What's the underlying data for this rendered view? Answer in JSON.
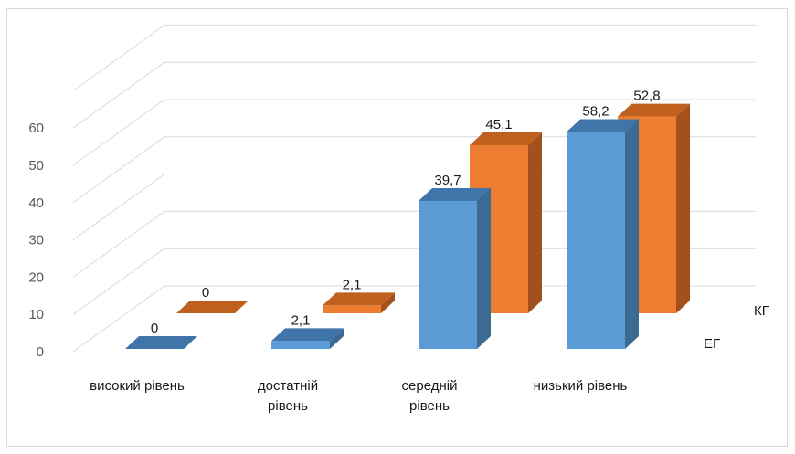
{
  "chart_data": {
    "type": "bar",
    "style": "3d-clustered-column",
    "categories": [
      [
        "високий рівень"
      ],
      [
        "достатній",
        "рівень"
      ],
      [
        "середній",
        "рівень"
      ],
      [
        "низький рівень"
      ]
    ],
    "series": [
      {
        "name": "ЕГ",
        "values": [
          0,
          2.1,
          39.7,
          58.2
        ],
        "labels": [
          "0",
          "2,1",
          "39,7",
          "58,2"
        ],
        "color": "#5b9bd5",
        "side_color": "#3b6a93",
        "top_color": "#3f75a8"
      },
      {
        "name": "КГ",
        "values": [
          0,
          2.1,
          45.1,
          52.8
        ],
        "labels": [
          "0",
          "2,1",
          "45,1",
          "52,8"
        ],
        "color": "#ed7d31",
        "side_color": "#a4501c",
        "top_color": "#c0601f"
      }
    ],
    "yticks": [
      "0",
      "10",
      "20",
      "30",
      "40",
      "50",
      "60"
    ],
    "ylim": [
      0,
      60
    ],
    "grid": true,
    "legend": "none",
    "title": "",
    "xlabel": "",
    "ylabel": ""
  }
}
